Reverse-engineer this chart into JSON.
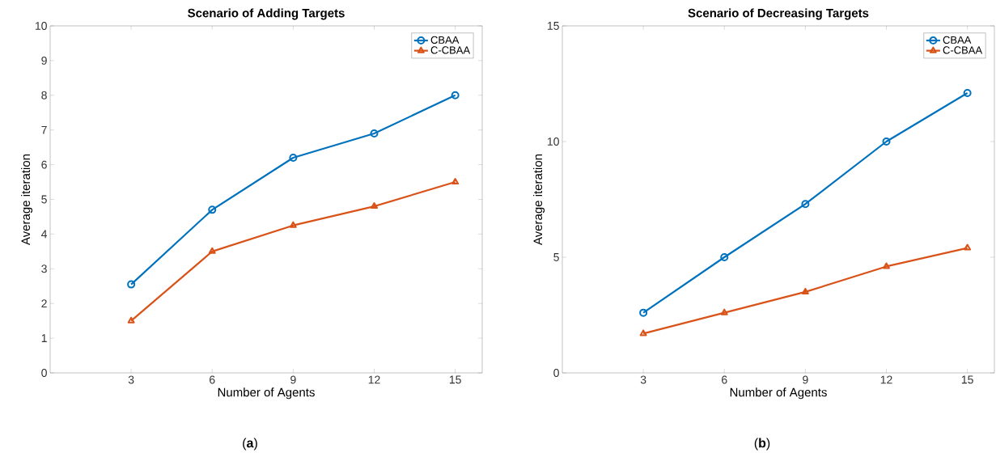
{
  "chart_data": [
    {
      "type": "line",
      "title": "Scenario of Adding Targets",
      "xlabel": "Number of Agents",
      "ylabel": "Average iteration",
      "x": [
        3,
        6,
        9,
        12,
        15
      ],
      "xlim": [
        0,
        16
      ],
      "xticks": [
        3,
        6,
        9,
        12,
        15
      ],
      "ylim": [
        0,
        10
      ],
      "yticks": [
        0,
        1,
        2,
        3,
        4,
        5,
        6,
        7,
        8,
        9,
        10
      ],
      "legend": "top right",
      "grid": false,
      "line_style": "solid",
      "annotations": [
        "(**a**)"
      ],
      "series": [
        {
          "name": "CBAA",
          "color": "#0072bd",
          "marker": "circle",
          "values": [
            2.55,
            4.7,
            6.2,
            6.9,
            8.0
          ]
        },
        {
          "name": "C-CBAA",
          "color": "#d95319",
          "marker": "triangle",
          "values": [
            1.5,
            3.5,
            4.25,
            4.8,
            5.5
          ]
        }
      ]
    },
    {
      "type": "line",
      "title": "Scenario of Decreasing Targets",
      "xlabel": "Number of Agents",
      "ylabel": "Average iteration",
      "x": [
        3,
        6,
        9,
        12,
        15
      ],
      "xlim": [
        0,
        16
      ],
      "xticks": [
        3,
        6,
        9,
        12,
        15
      ],
      "ylim": [
        0,
        15
      ],
      "yticks": [
        0,
        5,
        10,
        15
      ],
      "legend": "top right",
      "grid": false,
      "line_style": "solid",
      "annotations": [
        "(**b**)"
      ],
      "series": [
        {
          "name": "CBAA",
          "color": "#0072bd",
          "marker": "circle",
          "values": [
            2.6,
            5.0,
            7.3,
            10.0,
            12.1
          ]
        },
        {
          "name": "C-CBAA",
          "color": "#d95319",
          "marker": "triangle",
          "values": [
            1.7,
            2.6,
            3.5,
            4.6,
            5.4
          ]
        }
      ]
    }
  ]
}
